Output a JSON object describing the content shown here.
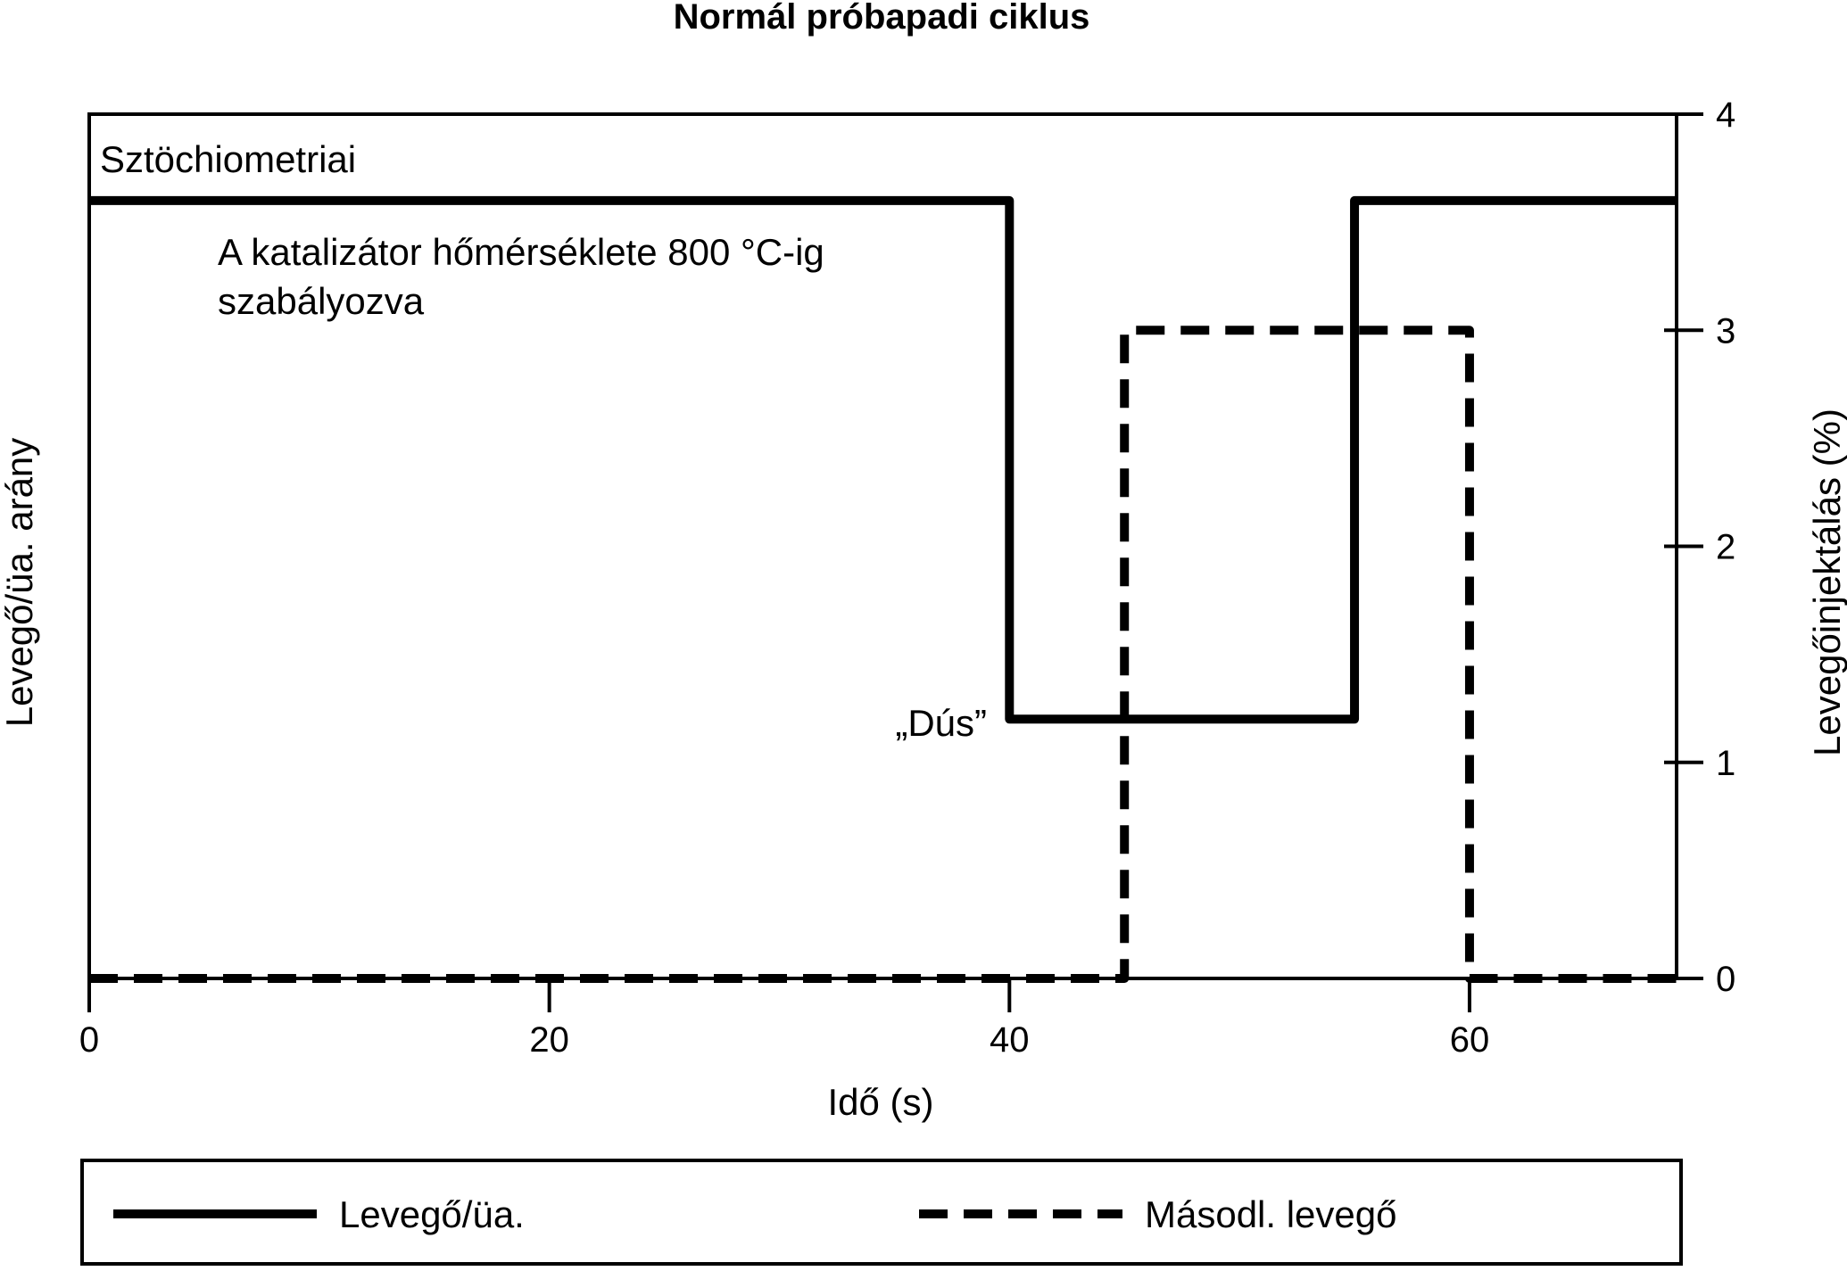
{
  "chart_data": {
    "type": "line",
    "title": "Normál próbapadi ciklus",
    "xlabel": "Idő (s)",
    "ylabel_left": "Levegő/üa. arány",
    "ylabel_right": "Levegőinjektálás (%)",
    "xlim": [
      0,
      69
    ],
    "ylim_right": [
      0,
      4
    ],
    "x_ticks": [
      0,
      20,
      40,
      60
    ],
    "x_tick_labels": [
      "0",
      "20",
      "40",
      "60"
    ],
    "y_right_ticks": [
      0,
      1,
      2,
      3,
      4
    ],
    "y_right_tick_labels": [
      "0",
      "1",
      "2",
      "3",
      "4"
    ],
    "legend_position": "bottom",
    "series": [
      {
        "name": "Levegő/üa.",
        "style": "solid",
        "note": "plotted against right-axis scale units",
        "x": [
          0,
          40,
          40,
          55,
          55,
          69
        ],
        "y": [
          3.6,
          3.6,
          1.2,
          1.2,
          3.6,
          3.6
        ]
      },
      {
        "name": "Másodl. levegő",
        "style": "dashed",
        "x": [
          0,
          45,
          45,
          60,
          60,
          69
        ],
        "y": [
          0,
          0,
          3,
          3,
          0,
          0
        ]
      }
    ],
    "annotations": {
      "stoich": "Sztöchiometriai",
      "catalyst_line1": "A katalizátor hőmérséklete 800 °C-ig",
      "catalyst_line2": "szabályozva",
      "rich": "„Dús”"
    },
    "colors": {
      "line": "#000000",
      "background": "#ffffff"
    }
  }
}
